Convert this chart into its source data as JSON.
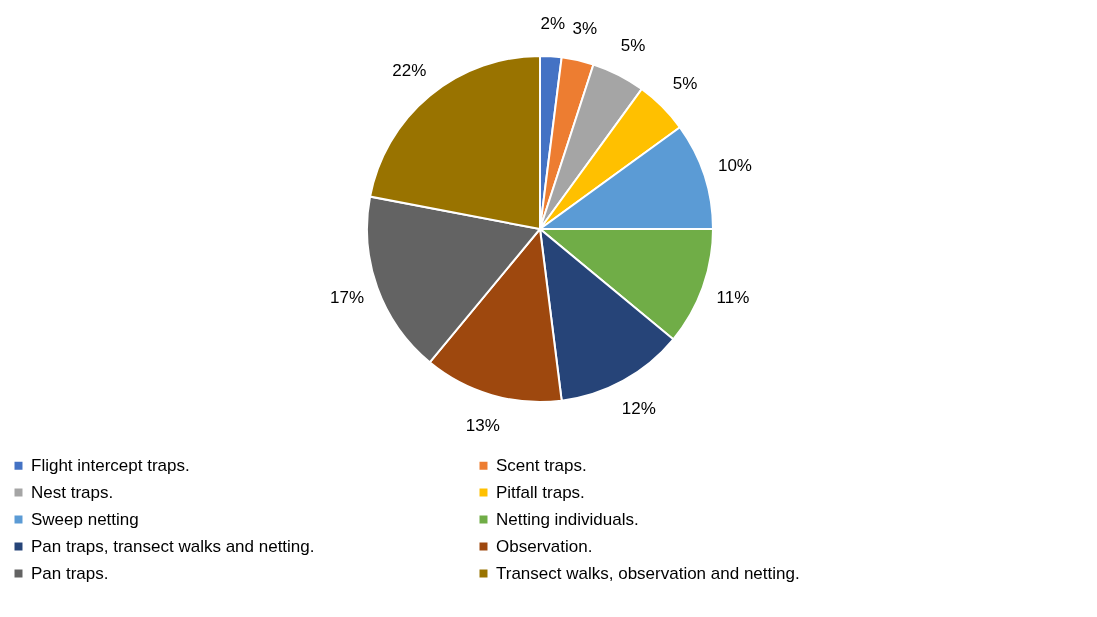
{
  "chart_data": {
    "type": "pie",
    "categories": [
      "Flight intercept traps.",
      "Scent traps.",
      "Nest traps.",
      "Pitfall traps.",
      "Sweep netting",
      "Netting individuals.",
      "Pan traps, transect walks and netting.",
      "Observation.",
      "Pan traps.",
      "Transect walks, observation and netting."
    ],
    "values": [
      2,
      3,
      5,
      5,
      10,
      11,
      12,
      13,
      17,
      22
    ],
    "value_labels": [
      "2%",
      "3%",
      "5%",
      "5%",
      "10%",
      "11%",
      "12%",
      "13%",
      "17%",
      "22%"
    ],
    "colors": [
      "#4472c4",
      "#ed7d31",
      "#a5a5a5",
      "#ffc000",
      "#5b9bd5",
      "#70ad47",
      "#264478",
      "#9e480e",
      "#636363",
      "#997300"
    ],
    "legend": "bottom"
  }
}
